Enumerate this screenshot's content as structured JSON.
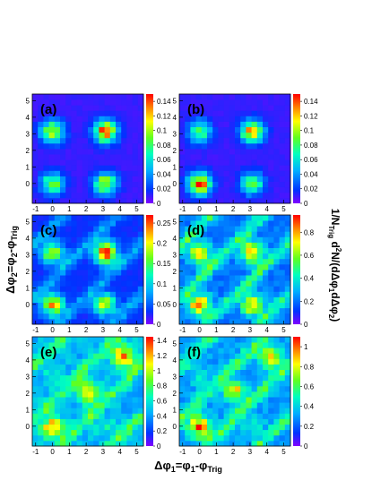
{
  "figure": {
    "y_axis_title": {
      "main": "Δφ",
      "sub1": "2",
      "mid": "=φ",
      "sub2": "2",
      "dash": "-φ",
      "sub3": "Trig"
    },
    "x_axis_title": {
      "main": "Δφ",
      "sub1": "1",
      "mid": "=φ",
      "sub2": "1",
      "dash": "-φ",
      "sub3": "Trig"
    },
    "z_axis_title": {
      "p1": "1/N",
      "s1": "Trig",
      "p2": " d",
      "sup": "2",
      "p3": "N/(dΔφ",
      "s2": "1",
      "p4": "dΔφ",
      "s3": "2",
      "p5": ")"
    }
  },
  "chart_data": [
    {
      "type": "heatmap",
      "panel_label": "(a)",
      "xlim": [
        -1.2,
        5.4
      ],
      "ylim": [
        -1.2,
        5.4
      ],
      "x_ticks": [
        "-1",
        "0",
        "1",
        "2",
        "3",
        "4",
        "5"
      ],
      "y_ticks": [
        "0",
        "1",
        "2",
        "3",
        "4",
        "5"
      ],
      "zlim": [
        0,
        0.15
      ],
      "z_ticks": [
        "0",
        "0.02",
        "0.04",
        "0.06",
        "0.08",
        "0.1",
        "0.12",
        "0.14"
      ],
      "peaks": [
        [
          0,
          0,
          0.09
        ],
        [
          0,
          3.14,
          0.11
        ],
        [
          3.14,
          0,
          0.11
        ],
        [
          3.14,
          3.14,
          0.14
        ]
      ],
      "background": 0.01,
      "ridge": 0
    },
    {
      "type": "heatmap",
      "panel_label": "(b)",
      "xlim": [
        -1.2,
        5.4
      ],
      "ylim": [
        -1.2,
        5.4
      ],
      "x_ticks": [
        "-1",
        "0",
        "1",
        "2",
        "3",
        "4",
        "5"
      ],
      "y_ticks": [
        "0",
        "1",
        "2",
        "3",
        "4",
        "5"
      ],
      "zlim": [
        0,
        0.15
      ],
      "z_ticks": [
        "0",
        "0.02",
        "0.04",
        "0.06",
        "0.08",
        "0.1",
        "0.12",
        "0.14"
      ],
      "peaks": [
        [
          0,
          0,
          0.14
        ],
        [
          0,
          3.14,
          0.09
        ],
        [
          3.14,
          0,
          0.09
        ],
        [
          3.14,
          3.14,
          0.13
        ]
      ],
      "background": 0.01,
      "ridge": 0
    },
    {
      "type": "heatmap",
      "panel_label": "(c)",
      "xlim": [
        -1.2,
        5.4
      ],
      "ylim": [
        -1.2,
        5.4
      ],
      "x_ticks": [
        "-1",
        "0",
        "1",
        "2",
        "3",
        "4",
        "5"
      ],
      "y_ticks": [
        "0",
        "1",
        "2",
        "3",
        "4",
        "5"
      ],
      "zlim": [
        0,
        0.27
      ],
      "z_ticks": [
        "0",
        "0.05",
        "0.1",
        "0.15",
        "0.2",
        "0.25"
      ],
      "peaks": [
        [
          0,
          0,
          0.22
        ],
        [
          0,
          3.14,
          0.18
        ],
        [
          3.14,
          0,
          0.18
        ],
        [
          3.14,
          3.14,
          0.24
        ]
      ],
      "background": 0.03,
      "ridge": 0.08
    },
    {
      "type": "heatmap",
      "panel_label": "(d)",
      "xlim": [
        -1.2,
        5.4
      ],
      "ylim": [
        -1.2,
        5.4
      ],
      "x_ticks": [
        "-1",
        "0",
        "1",
        "2",
        "3",
        "4",
        "5"
      ],
      "y_ticks": [
        "0",
        "1",
        "2",
        "3",
        "4",
        "5"
      ],
      "zlim": [
        0,
        0.95
      ],
      "z_ticks": [
        "0",
        "0.2",
        "0.4",
        "0.6",
        "0.8"
      ],
      "peaks": [
        [
          0,
          0,
          0.85
        ],
        [
          0,
          3.14,
          0.75
        ],
        [
          3.14,
          0,
          0.75
        ],
        [
          3.14,
          3.14,
          0.8
        ]
      ],
      "background": 0.2,
      "ridge": 0.45
    },
    {
      "type": "heatmap",
      "panel_label": "(e)",
      "xlim": [
        -1.2,
        5.4
      ],
      "ylim": [
        -1.2,
        5.4
      ],
      "x_ticks": [
        "-1",
        "0",
        "1",
        "2",
        "3",
        "4",
        "5"
      ],
      "y_ticks": [
        "0",
        "1",
        "2",
        "3",
        "4",
        "5"
      ],
      "zlim": [
        0,
        1.45
      ],
      "z_ticks": [
        "0",
        "0.2",
        "0.4",
        "0.6",
        "0.8",
        "1",
        "1.2",
        "1.4"
      ],
      "peaks": [
        [
          0,
          0,
          1.2
        ],
        [
          2.1,
          2.1,
          1.1
        ],
        [
          4.2,
          4.2,
          1.3
        ],
        [
          0,
          3.14,
          0.6
        ],
        [
          3.14,
          0,
          0.6
        ]
      ],
      "background": 0.45,
      "ridge": 0.55
    },
    {
      "type": "heatmap",
      "panel_label": "(f)",
      "xlim": [
        -1.2,
        5.4
      ],
      "ylim": [
        -1.2,
        5.4
      ],
      "x_ticks": [
        "-1",
        "0",
        "1",
        "2",
        "3",
        "4",
        "5"
      ],
      "y_ticks": [
        "0",
        "1",
        "2",
        "3",
        "4",
        "5"
      ],
      "zlim": [
        0,
        1.1
      ],
      "z_ticks": [
        "0",
        "0.2",
        "0.4",
        "0.6",
        "0.8",
        "1"
      ],
      "peaks": [
        [
          0,
          0,
          1.0
        ],
        [
          2.1,
          2.1,
          0.85
        ],
        [
          4.2,
          4.2,
          0.85
        ],
        [
          0,
          3.14,
          0.45
        ],
        [
          3.14,
          0,
          0.45
        ]
      ],
      "background": 0.3,
      "ridge": 0.45
    }
  ]
}
